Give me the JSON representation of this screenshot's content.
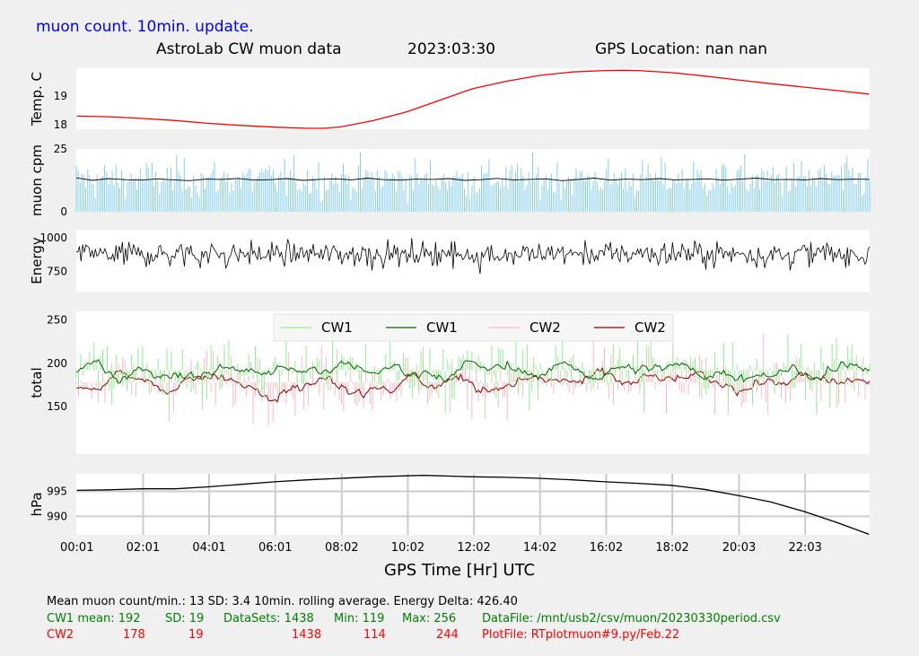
{
  "header": {
    "update_text": "muon count.  10min. update.",
    "title": "AstroLab CW muon data",
    "date": "2023:03:30",
    "gps_location": "GPS Location: nan   nan"
  },
  "colors": {
    "temp": "#ff0000",
    "muon_bar": "#87ceeb",
    "muon_avg": "#000000",
    "energy": "#000000",
    "cw1_raw": "#90ee90",
    "cw1_avg": "#006400",
    "cw2_raw": "#ffb6c1",
    "cw2_avg": "#8b0000",
    "pressure": "#000000"
  },
  "chart_data": [
    {
      "type": "line",
      "name": "temperature",
      "ylabel": "Temp. C",
      "yticks": [
        18,
        19
      ],
      "ylim": [
        17.85,
        19.95
      ],
      "x": [
        0.02,
        1,
        2,
        3,
        4,
        5,
        6,
        7,
        7.5,
        8,
        9,
        10,
        11,
        12,
        13,
        14,
        15,
        16,
        16.5,
        17,
        18,
        19,
        20,
        21,
        22,
        23,
        23.98
      ],
      "y": [
        18.3,
        18.28,
        18.22,
        18.15,
        18.05,
        17.98,
        17.92,
        17.88,
        17.88,
        17.93,
        18.15,
        18.45,
        18.85,
        19.25,
        19.5,
        19.7,
        19.82,
        19.87,
        19.88,
        19.87,
        19.8,
        19.68,
        19.55,
        19.42,
        19.3,
        19.18,
        19.06
      ],
      "grid": false
    },
    {
      "type": "bar",
      "name": "muon_cpm",
      "ylabel": "muon cpm",
      "yticks": [
        0,
        25
      ],
      "ylim": [
        0,
        25
      ],
      "bar_mean": 13,
      "bar_sd": 3.4,
      "rolling_avg": [
        13.5,
        12.5,
        13.2,
        12.8,
        12.6,
        13.1,
        12.7,
        12.4,
        13.0,
        12.9,
        13.3,
        12.6,
        12.8,
        13.2,
        12.5,
        12.9,
        13.1,
        12.7,
        13.4,
        12.8,
        12.6,
        13.0,
        12.9,
        13.2,
        12.5,
        12.8,
        13.3,
        12.7,
        12.9,
        13.1,
        12.4,
        12.9,
        13.4,
        12.6,
        13.0,
        12.8,
        13.2,
        12.7,
        12.9,
        13.1,
        12.6,
        13.0,
        13.4,
        12.8,
        12.9,
        12.7,
        13.2,
        12.8,
        13.0,
        12.9
      ],
      "grid": false
    },
    {
      "type": "line",
      "name": "energy",
      "ylabel": "Energy",
      "yticks": [
        750,
        1000
      ],
      "ylim": [
        600,
        1060
      ],
      "mean": 880,
      "spread": 45,
      "grid": false
    },
    {
      "type": "line",
      "name": "total",
      "ylabel": "total",
      "yticks": [
        150,
        200,
        250
      ],
      "ylim": [
        95,
        260
      ],
      "legend": [
        "CW1",
        "CW1",
        "CW2",
        "CW2"
      ],
      "legend_position": "top-center",
      "series": [
        {
          "name": "CW1",
          "mean": 192,
          "sd": 19,
          "min": 119,
          "max": 256
        },
        {
          "name": "CW2",
          "mean": 178,
          "sd": 19,
          "min": 114,
          "max": 244
        }
      ],
      "grid": false
    },
    {
      "type": "line",
      "name": "pressure",
      "ylabel": "hPa",
      "yticks": [
        990,
        995
      ],
      "ylim": [
        986.3,
        998.5
      ],
      "x": [
        0.02,
        1,
        2,
        3,
        4,
        5,
        6,
        7,
        8,
        9,
        10,
        10.5,
        11,
        12,
        13,
        14,
        15,
        16,
        17,
        18,
        19,
        20,
        21,
        22,
        23,
        23.98
      ],
      "y": [
        995.2,
        995.3,
        995.5,
        995.5,
        995.9,
        996.4,
        996.9,
        997.3,
        997.6,
        997.9,
        998.1,
        998.2,
        998.1,
        997.9,
        997.8,
        997.6,
        997.3,
        996.9,
        996.6,
        996.2,
        995.4,
        994.2,
        992.9,
        991.0,
        988.8,
        986.4
      ],
      "grid": true
    }
  ],
  "xaxis": {
    "ticks": [
      "00:01",
      "02:01",
      "04:01",
      "06:01",
      "08:02",
      "10:02",
      "12:02",
      "14:02",
      "16:02",
      "18:02",
      "20:03",
      "22:03"
    ],
    "tick_hours": [
      0.02,
      2.02,
      4.02,
      6.02,
      8.03,
      10.03,
      12.03,
      14.03,
      16.03,
      18.03,
      20.05,
      22.05
    ],
    "range": [
      0,
      24
    ],
    "label": "GPS Time  [Hr] UTC"
  },
  "footer": {
    "line1": "Mean muon count/min.: 13  SD: 3.4   10min. rolling average.    Energy Delta:  426.40",
    "line2": {
      "a": "CW1 mean: 192",
      "b": "SD: 19",
      "c": "DataSets: 1438",
      "d": "Min: 119",
      "e": "Max: 256",
      "f": "DataFile: /mnt/usb2/csv/muon/20230330period.csv"
    },
    "line3": {
      "a": "CW2",
      "a2": "178",
      "b": "19",
      "c": "1438",
      "d": "114",
      "e": "244",
      "f": "PlotFile: RTplotmuon#9.py/Feb.22"
    }
  }
}
